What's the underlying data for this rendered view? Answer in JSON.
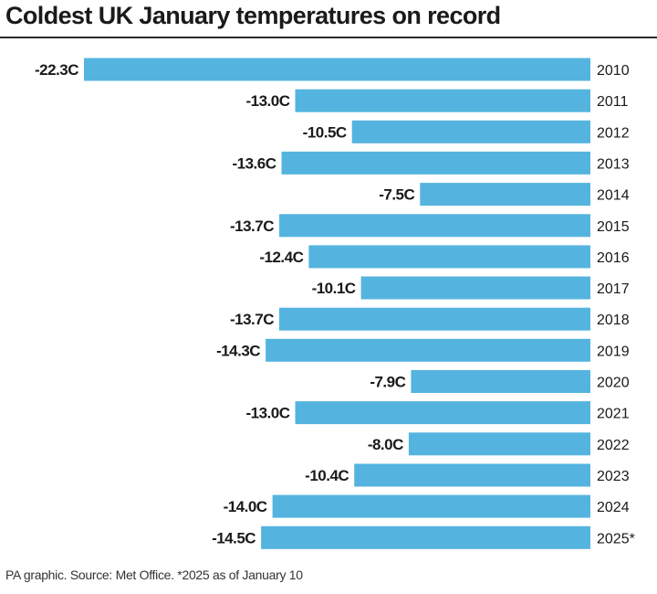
{
  "title": "Coldest UK January temperatures on record",
  "footer": "PA graphic. Source: Met Office. *2025 as of January 10",
  "colors": {
    "bar": "#55b4df",
    "text": "#1a1a1a",
    "rule": "#2b2b2b"
  },
  "chart_data": {
    "type": "bar",
    "orientation": "horizontal",
    "title": "Coldest UK January temperatures on record",
    "categories": [
      "2010",
      "2011",
      "2012",
      "2013",
      "2014",
      "2015",
      "2016",
      "2017",
      "2018",
      "2019",
      "2020",
      "2021",
      "2022",
      "2023",
      "2024",
      "2025*"
    ],
    "values": [
      -22.3,
      -13.0,
      -10.5,
      -13.6,
      -7.5,
      -13.7,
      -12.4,
      -10.1,
      -13.7,
      -14.3,
      -7.9,
      -13.0,
      -8.0,
      -10.4,
      -14.0,
      -14.5
    ],
    "value_labels": [
      "-22.3C",
      "-13.0C",
      "-10.5C",
      "-13.6C",
      "-7.5C",
      "-13.7C",
      "-12.4C",
      "-10.1C",
      "-13.7C",
      "-14.3C",
      "-7.9C",
      "-13.0C",
      "-8.0C",
      "-10.4C",
      "-14.0C",
      "-14.5C"
    ],
    "unit": "C",
    "xlim": [
      -22.3,
      0
    ],
    "grid": false,
    "legend": "none"
  }
}
